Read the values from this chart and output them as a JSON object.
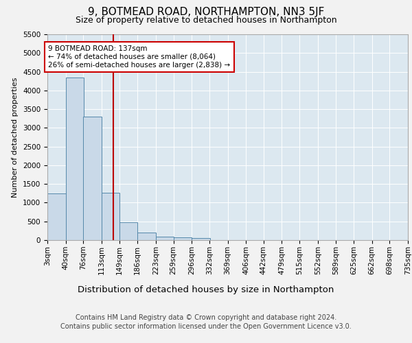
{
  "title": "9, BOTMEAD ROAD, NORTHAMPTON, NN3 5JF",
  "subtitle": "Size of property relative to detached houses in Northampton",
  "xlabel": "Distribution of detached houses by size in Northampton",
  "ylabel": "Number of detached properties",
  "footer_line1": "Contains HM Land Registry data © Crown copyright and database right 2024.",
  "footer_line2": "Contains public sector information licensed under the Open Government Licence v3.0.",
  "bin_edges": [
    3,
    40,
    76,
    113,
    149,
    186,
    223,
    259,
    296,
    332,
    369,
    406,
    442,
    479,
    515,
    552,
    589,
    625,
    662,
    698,
    735
  ],
  "bin_labels": [
    "3sqm",
    "40sqm",
    "76sqm",
    "113sqm",
    "149sqm",
    "186sqm",
    "223sqm",
    "259sqm",
    "296sqm",
    "332sqm",
    "369sqm",
    "406sqm",
    "442sqm",
    "479sqm",
    "515sqm",
    "552sqm",
    "589sqm",
    "625sqm",
    "662sqm",
    "698sqm",
    "735sqm"
  ],
  "bar_heights": [
    1250,
    4350,
    3300,
    1260,
    480,
    200,
    100,
    75,
    55,
    0,
    0,
    0,
    0,
    0,
    0,
    0,
    0,
    0,
    0,
    0
  ],
  "bar_color": "#c9d9e8",
  "bar_edge_color": "#5588aa",
  "property_line_x": 137,
  "property_line_color": "#bb0000",
  "annotation_line1": "9 BOTMEAD ROAD: 137sqm",
  "annotation_line2": "← 74% of detached houses are smaller (8,064)",
  "annotation_line3": "26% of semi-detached houses are larger (2,838) →",
  "annotation_box_color": "#ffffff",
  "annotation_box_edge_color": "#cc0000",
  "ylim": [
    0,
    5500
  ],
  "yticks": [
    0,
    500,
    1000,
    1500,
    2000,
    2500,
    3000,
    3500,
    4000,
    4500,
    5000,
    5500
  ],
  "background_color": "#dce8f0",
  "grid_color": "#ffffff",
  "title_fontsize": 11,
  "subtitle_fontsize": 9,
  "ylabel_fontsize": 8,
  "xlabel_fontsize": 9.5,
  "tick_fontsize": 7.5,
  "annotation_fontsize": 7.5,
  "footer_fontsize": 7
}
